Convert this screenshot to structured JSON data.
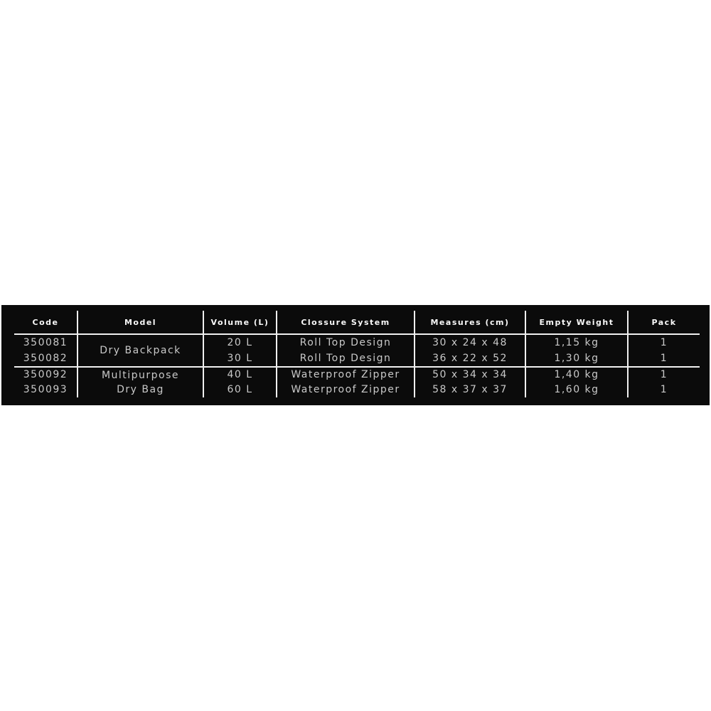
{
  "page": {
    "background": "#ffffff"
  },
  "table": {
    "colors": {
      "background": "#0b0b0b",
      "grid_line": "#f0f0f0",
      "header_text": "#f8f8f8",
      "body_text": "#c9c9c9"
    },
    "headers": [
      "Code",
      "Model",
      "Volume (L)",
      "Clossure System",
      "Measures (cm)",
      "Empty Weight",
      "Pack"
    ],
    "groups": [
      {
        "model": "Dry Backpack",
        "rows": [
          {
            "code": "350081",
            "volume": "20 L",
            "closure": "Roll Top Design",
            "measures": "30 x 24 x 48",
            "weight": "1,15 kg",
            "pack": "1"
          },
          {
            "code": "350082",
            "volume": "30 L",
            "closure": "Roll Top Design",
            "measures": "36 x 22 x 52",
            "weight": "1,30 kg",
            "pack": "1"
          }
        ]
      },
      {
        "model": "Multipurpose Dry Bag",
        "rows": [
          {
            "code": "350092",
            "volume": "40 L",
            "closure": "Waterproof Zipper",
            "measures": "50 x 34 x 34",
            "weight": "1,40 kg",
            "pack": "1"
          },
          {
            "code": "350093",
            "volume": "60 L",
            "closure": "Waterproof Zipper",
            "measures": "58 x 37 x 37",
            "weight": "1,60 kg",
            "pack": "1"
          }
        ]
      }
    ]
  },
  "chart_data": {
    "type": "table",
    "title": "",
    "columns": [
      "Code",
      "Model",
      "Volume (L)",
      "Clossure System",
      "Measures (cm)",
      "Empty Weight",
      "Pack"
    ],
    "rows": [
      [
        "350081",
        "Dry Backpack",
        "20 L",
        "Roll Top Design",
        "30 x 24 x 48",
        "1,15 kg",
        "1"
      ],
      [
        "350082",
        "Dry Backpack",
        "30 L",
        "Roll Top Design",
        "36 x 22 x 52",
        "1,30 kg",
        "1"
      ],
      [
        "350092",
        "Multipurpose Dry Bag",
        "40 L",
        "Waterproof Zipper",
        "50 x 34 x 34",
        "1,40 kg",
        "1"
      ],
      [
        "350093",
        "Multipurpose Dry Bag",
        "60 L",
        "Waterproof Zipper",
        "58 x 37 x 37",
        "1,60 kg",
        "1"
      ]
    ]
  }
}
